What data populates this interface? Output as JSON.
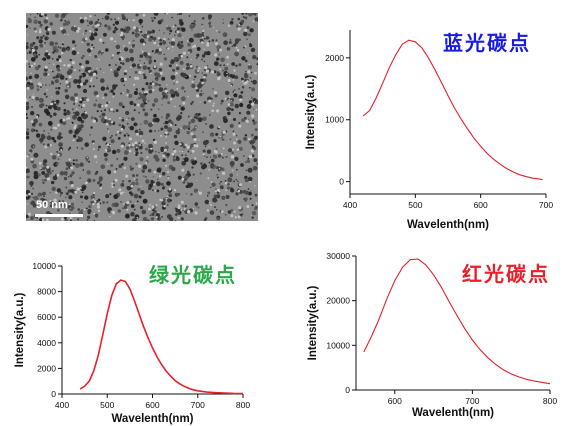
{
  "tem_image": {
    "scale_label": "50 nm"
  },
  "chart_data": [
    {
      "type": "line",
      "title": "蓝光碳点",
      "title_color": "#1a1ae6",
      "line_color": "#e8202a",
      "xlabel": "Wavelenth(nm)",
      "ylabel": "Intensity(a.u.)",
      "xlim": [
        400,
        700
      ],
      "ylim": [
        -200,
        2450
      ],
      "xticks": [
        400,
        500,
        600,
        700
      ],
      "yticks": [
        0,
        1000,
        2000
      ],
      "grid": false,
      "series": [
        {
          "x": [
            420,
            430,
            440,
            450,
            460,
            470,
            480,
            490,
            500,
            510,
            520,
            530,
            540,
            550,
            560,
            570,
            580,
            590,
            600,
            610,
            620,
            630,
            640,
            650,
            660,
            670,
            680,
            690,
            695
          ],
          "y": [
            1060,
            1150,
            1350,
            1590,
            1840,
            2050,
            2220,
            2285,
            2260,
            2160,
            2000,
            1810,
            1600,
            1390,
            1190,
            1010,
            850,
            700,
            570,
            455,
            360,
            280,
            210,
            155,
            110,
            80,
            55,
            40,
            35
          ]
        }
      ]
    },
    {
      "type": "line",
      "title": "绿光碳点",
      "title_color": "#2aa84a",
      "line_color": "#e8202a",
      "xlabel": "Wavelenth(nm)",
      "ylabel": "Intensity(a.u.)",
      "xlim": [
        400,
        800
      ],
      "ylim": [
        0,
        10000
      ],
      "xticks": [
        400,
        500,
        600,
        700,
        800
      ],
      "yticks": [
        0,
        2000,
        4000,
        6000,
        8000,
        10000
      ],
      "grid": false,
      "series": [
        {
          "x": [
            440,
            450,
            460,
            470,
            480,
            490,
            500,
            510,
            520,
            530,
            540,
            550,
            560,
            570,
            580,
            590,
            600,
            610,
            620,
            630,
            640,
            650,
            660,
            670,
            680,
            690,
            700,
            720,
            740,
            760,
            780,
            800
          ],
          "y": [
            400,
            600,
            1000,
            1800,
            3000,
            4600,
            6300,
            7700,
            8600,
            8900,
            8800,
            8200,
            7300,
            6300,
            5300,
            4400,
            3600,
            2900,
            2300,
            1800,
            1400,
            1050,
            800,
            600,
            450,
            330,
            250,
            150,
            100,
            70,
            50,
            40
          ]
        }
      ]
    },
    {
      "type": "line",
      "title": "红光碳点",
      "title_color": "#e8202a",
      "line_color": "#e8202a",
      "xlabel": "Wavelenth(nm)",
      "ylabel": "Intensity(a.u.)",
      "xlim": [
        550,
        800
      ],
      "ylim": [
        0,
        30000
      ],
      "xticks": [
        600,
        700,
        800
      ],
      "yticks": [
        0,
        10000,
        20000,
        30000
      ],
      "grid": false,
      "series": [
        {
          "x": [
            560,
            570,
            580,
            590,
            600,
            610,
            620,
            630,
            640,
            650,
            660,
            670,
            680,
            690,
            700,
            710,
            720,
            730,
            740,
            750,
            760,
            770,
            780,
            790,
            800
          ],
          "y": [
            8500,
            12000,
            16000,
            20500,
            24500,
            27500,
            29200,
            29300,
            28000,
            25800,
            23000,
            19800,
            16700,
            13800,
            11200,
            9000,
            7200,
            5700,
            4500,
            3600,
            2900,
            2400,
            2000,
            1700,
            1400
          ]
        }
      ]
    }
  ]
}
